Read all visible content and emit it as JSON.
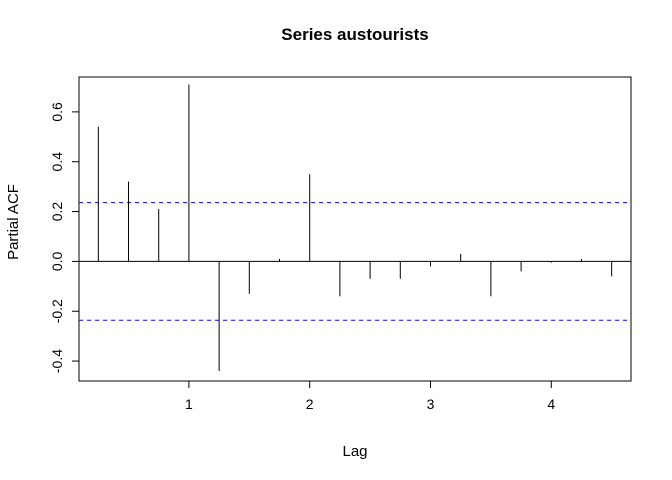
{
  "chart_data": {
    "type": "bar",
    "title": "Series  austourists",
    "xlabel": "Lag",
    "ylabel": "Partial ACF",
    "xlim": [
      0.09,
      4.66
    ],
    "ylim": [
      -0.48,
      0.74
    ],
    "x_ticks": [
      1,
      2,
      3,
      4
    ],
    "x_tick_labels": [
      "1",
      "2",
      "3",
      "4"
    ],
    "y_ticks": [
      -0.4,
      -0.2,
      0.0,
      0.2,
      0.4,
      0.6
    ],
    "y_tick_labels": [
      "-0.4",
      "-0.2",
      "0.0",
      "0.2",
      "0.4",
      "0.6"
    ],
    "confidence_bound": 0.236,
    "confidence_color": "#0000ee",
    "bar_color": "#000000",
    "grid": false,
    "lags": [
      0.25,
      0.5,
      0.75,
      1.0,
      1.25,
      1.5,
      1.75,
      2.0,
      2.25,
      2.5,
      2.75,
      3.0,
      3.25,
      3.5,
      3.75,
      4.0,
      4.25,
      4.5
    ],
    "values": [
      0.54,
      0.32,
      0.21,
      0.71,
      -0.44,
      -0.13,
      0.01,
      0.35,
      -0.14,
      -0.07,
      -0.07,
      -0.02,
      0.03,
      -0.14,
      -0.04,
      -0.005,
      0.01,
      -0.06
    ]
  }
}
